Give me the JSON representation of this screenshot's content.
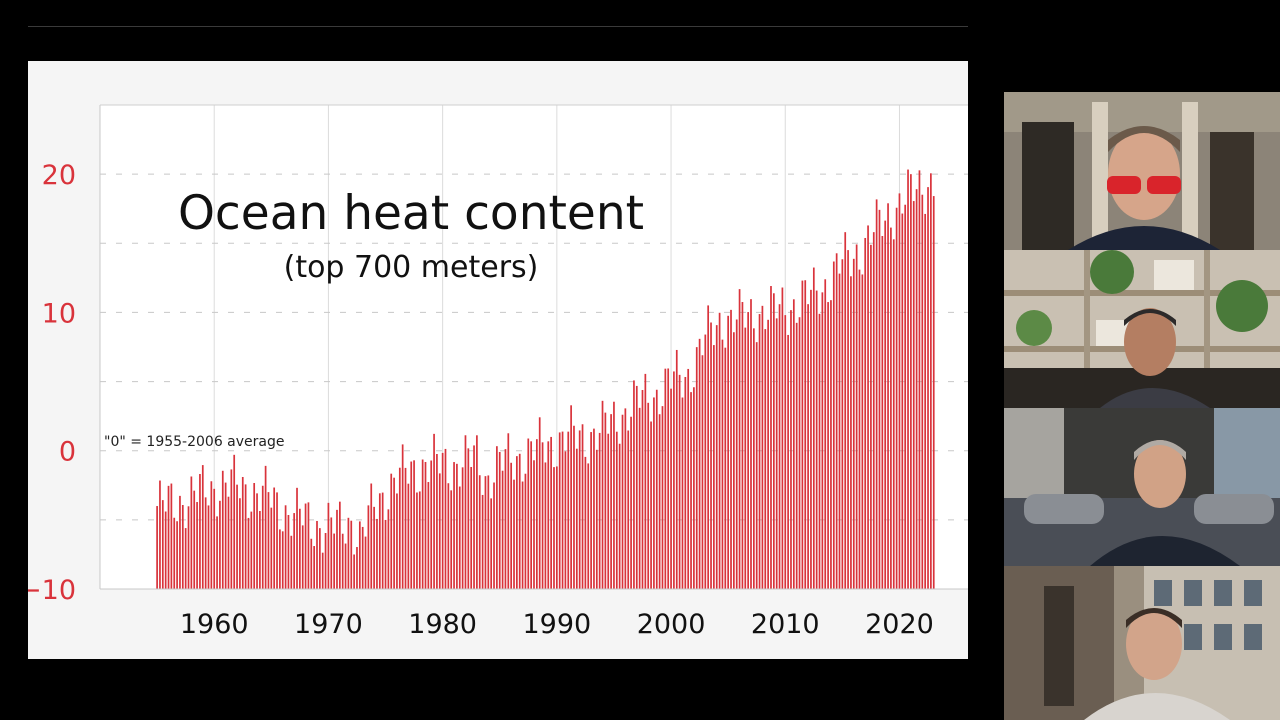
{
  "chart_data": {
    "type": "bar",
    "title": "Ocean heat content",
    "subtitle": "(top 700 meters)",
    "annotation": "\"0\" = 1955-2006 average",
    "x_ticks": [
      "1960",
      "1970",
      "1980",
      "1990",
      "2000",
      "2010",
      "2020"
    ],
    "y_ticks": [
      "20",
      "10",
      "0",
      "−10"
    ],
    "xlim": [
      1950,
      2026
    ],
    "ylim": [
      -10,
      25
    ],
    "grid": true,
    "bar_color": "#d9333b",
    "tick_label_color_y": "#d9333b",
    "anchors": {
      "x": [
        1955.0,
        1956.0,
        1957.5,
        1959.0,
        1960.5,
        1962.0,
        1963.5,
        1965.0,
        1966.5,
        1968.0,
        1969.5,
        1971.0,
        1972.0,
        1972.8,
        1974.0,
        1975.5,
        1977.0,
        1978.5,
        1980.0,
        1981.5,
        1983.0,
        1983.8,
        1985.0,
        1986.5,
        1988.0,
        1989.5,
        1991.0,
        1992.5,
        1994.0,
        1995.5,
        1997.0,
        1998.5,
        2000.0,
        2001.5,
        2003.0,
        2004.5,
        2006.0,
        2007.5,
        2009.0,
        2010.5,
        2012.0,
        2013.5,
        2015.0,
        2016.5,
        2018.0,
        2019.5,
        2021.0,
        2022.5
      ],
      "y": [
        -4.0,
        -4.0,
        -3.5,
        -3.0,
        -2.5,
        -2.5,
        -3.0,
        -3.5,
        -4.5,
        -5.0,
        -5.5,
        -5.5,
        -5.0,
        -6.5,
        -4.0,
        -2.5,
        -1.5,
        -1.0,
        -1.0,
        -1.0,
        -0.5,
        -2.0,
        -1.0,
        -0.5,
        0.0,
        0.5,
        1.0,
        1.0,
        1.5,
        2.5,
        3.5,
        4.0,
        5.0,
        5.5,
        8.0,
        9.5,
        9.5,
        10.0,
        10.0,
        10.5,
        11.0,
        12.0,
        13.5,
        14.5,
        16.0,
        17.5,
        18.5,
        19.5
      ]
    },
    "sampling": "quarterly"
  },
  "participants": [
    {
      "id": "participant-1",
      "bg": "#8c8478",
      "accent": "#d9242b"
    },
    {
      "id": "participant-2",
      "bg": "#c9c0b2",
      "accent": "#4a7a3a"
    },
    {
      "id": "participant-3",
      "bg": "#6e7278",
      "accent": "#2b2f38"
    },
    {
      "id": "participant-4",
      "bg": "#9a8f7f",
      "accent": "#d8d4cf"
    }
  ]
}
